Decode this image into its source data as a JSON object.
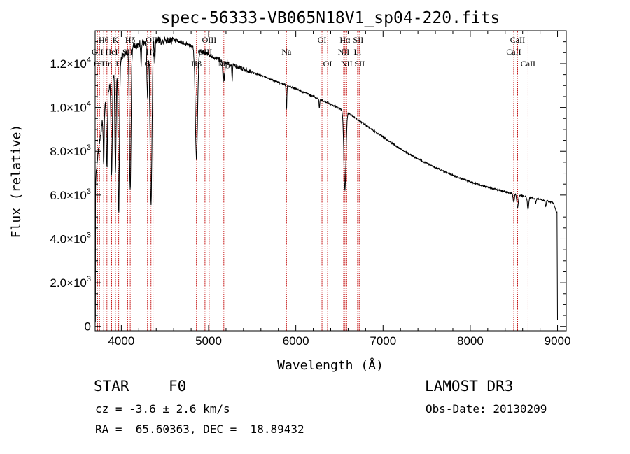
{
  "chart_data": {
    "type": "line",
    "title": "spec-56333-VB065N18V1_sp04-220.fits",
    "xlabel": "Wavelength (Å)",
    "ylabel": "Flux (relative)",
    "xlim": [
      3700,
      9100
    ],
    "ylim": [
      -200,
      13500
    ],
    "x_ticks": [
      4000,
      5000,
      6000,
      7000,
      8000,
      9000
    ],
    "x_tick_labels": [
      "4000",
      "5000",
      "6000",
      "7000",
      "8000",
      "9000"
    ],
    "y_ticks": [
      0,
      2000,
      4000,
      6000,
      8000,
      10000,
      12000
    ],
    "y_tick_labels": [
      {
        "mant": "0",
        "exp": ""
      },
      {
        "mant": "2.0×10",
        "exp": "3"
      },
      {
        "mant": "4.0×10",
        "exp": "3"
      },
      {
        "mant": "6.0×10",
        "exp": "3"
      },
      {
        "mant": "8.0×10",
        "exp": "3"
      },
      {
        "mant": "1.0×10",
        "exp": "4"
      },
      {
        "mant": "1.2×10",
        "exp": "4"
      }
    ],
    "spectrum": {
      "continuum": [
        [
          3700,
          6500
        ],
        [
          3750,
          8500
        ],
        [
          3800,
          9800
        ],
        [
          3850,
          10800
        ],
        [
          3900,
          11500
        ],
        [
          3950,
          12000
        ],
        [
          4000,
          12300
        ],
        [
          4050,
          12500
        ],
        [
          4100,
          12700
        ],
        [
          4200,
          12900
        ],
        [
          4300,
          13000
        ],
        [
          4400,
          13050
        ],
        [
          4500,
          13050
        ],
        [
          4600,
          13050
        ],
        [
          4700,
          12950
        ],
        [
          4800,
          12800
        ],
        [
          4900,
          12600
        ],
        [
          5000,
          12400
        ],
        [
          5200,
          12050
        ],
        [
          5400,
          11750
        ],
        [
          5600,
          11450
        ],
        [
          5800,
          11150
        ],
        [
          6000,
          10850
        ],
        [
          6200,
          10500
        ],
        [
          6400,
          10150
        ],
        [
          6600,
          9750
        ],
        [
          6800,
          9200
        ],
        [
          7000,
          8650
        ],
        [
          7200,
          8100
        ],
        [
          7400,
          7650
        ],
        [
          7600,
          7250
        ],
        [
          7800,
          6900
        ],
        [
          8000,
          6600
        ],
        [
          8200,
          6350
        ],
        [
          8400,
          6150
        ],
        [
          8600,
          5950
        ],
        [
          8800,
          5800
        ],
        [
          8950,
          5650
        ],
        [
          8990,
          5200
        ]
      ],
      "absorption_lines": [
        {
          "center": 3798,
          "depth": 2500,
          "width": 5
        },
        {
          "center": 3835,
          "depth": 3300,
          "width": 6
        },
        {
          "center": 3889,
          "depth": 4500,
          "width": 7
        },
        {
          "center": 3933,
          "depth": 5000,
          "width": 7
        },
        {
          "center": 3970,
          "depth": 7000,
          "width": 8
        },
        {
          "center": 4102,
          "depth": 6500,
          "width": 9
        },
        {
          "center": 4226,
          "depth": 1000,
          "width": 4
        },
        {
          "center": 4300,
          "depth": 2500,
          "width": 7
        },
        {
          "center": 4340,
          "depth": 7500,
          "width": 11
        },
        {
          "center": 4384,
          "depth": 1000,
          "width": 4
        },
        {
          "center": 4861,
          "depth": 5000,
          "width": 13
        },
        {
          "center": 5167,
          "depth": 900,
          "width": 5
        },
        {
          "center": 5183,
          "depth": 900,
          "width": 5
        },
        {
          "center": 5270,
          "depth": 700,
          "width": 4
        },
        {
          "center": 5893,
          "depth": 1100,
          "width": 4
        },
        {
          "center": 6270,
          "depth": 400,
          "width": 4
        },
        {
          "center": 6563,
          "depth": 3600,
          "width": 12
        },
        {
          "center": 8498,
          "depth": 400,
          "width": 7
        },
        {
          "center": 8542,
          "depth": 600,
          "width": 8
        },
        {
          "center": 8662,
          "depth": 550,
          "width": 8
        },
        {
          "center": 8750,
          "depth": 200,
          "width": 5
        },
        {
          "center": 8865,
          "depth": 250,
          "width": 5
        }
      ],
      "noise_amplitude": 220,
      "edge_dropout": {
        "x": 9000,
        "value": 300
      }
    },
    "line_markers": [
      {
        "wavelength": 3727,
        "label": "OII",
        "row": 2
      },
      {
        "wavelength": 3750,
        "label": "OII",
        "row": 3
      },
      {
        "wavelength": 3798,
        "label": "Hθ",
        "row": 1
      },
      {
        "wavelength": 3835,
        "label": "Hη",
        "row": 3
      },
      {
        "wavelength": 3889,
        "label": "HeI",
        "row": 2
      },
      {
        "wavelength": 3933,
        "label": "K",
        "row": 1
      },
      {
        "wavelength": 3970,
        "label": "H",
        "row": 3
      },
      {
        "wavelength": 4072,
        "label": "SII",
        "row": 2
      },
      {
        "wavelength": 4102,
        "label": "Hδ",
        "row": 1
      },
      {
        "wavelength": 4300,
        "label": "G",
        "row": 3
      },
      {
        "wavelength": 4340,
        "label": "Hγ",
        "row": 2
      },
      {
        "wavelength": 4363,
        "label": "OIII",
        "row": 1
      },
      {
        "wavelength": 4861,
        "label": "Hβ",
        "row": 3
      },
      {
        "wavelength": 4959,
        "label": "OIII",
        "row": 2
      },
      {
        "wavelength": 5007,
        "label": "OIII",
        "row": 1
      },
      {
        "wavelength": 5175,
        "label": "Mg",
        "row": 3
      },
      {
        "wavelength": 5893,
        "label": "Na",
        "row": 2
      },
      {
        "wavelength": 6300,
        "label": "OI",
        "row": 1
      },
      {
        "wavelength": 6364,
        "label": "OI",
        "row": 3
      },
      {
        "wavelength": 6548,
        "label": "NII",
        "row": 2
      },
      {
        "wavelength": 6563,
        "label": "Hα",
        "row": 1
      },
      {
        "wavelength": 6583,
        "label": "NII",
        "row": 3
      },
      {
        "wavelength": 6708,
        "label": "Li",
        "row": 2
      },
      {
        "wavelength": 6716,
        "label": "SII",
        "row": 1
      },
      {
        "wavelength": 6731,
        "label": "SII",
        "row": 3
      },
      {
        "wavelength": 8498,
        "label": "CaII",
        "row": 2
      },
      {
        "wavelength": 8542,
        "label": "CaII",
        "row": 1
      },
      {
        "wavelength": 8662,
        "label": "CaII",
        "row": 3
      }
    ]
  },
  "info": {
    "object_class": "STAR",
    "subclass": "F0",
    "survey": "LAMOST DR3",
    "redshift": "cz = -3.6 ± 2.6 km/s",
    "obs_date": "Obs-Date: 20130209",
    "coords": "RA =  65.60363, DEC =  18.89432"
  },
  "colors": {
    "spectrum": "#000000",
    "marker_line": "#c00000",
    "axes": "#000000",
    "background": "#ffffff"
  }
}
